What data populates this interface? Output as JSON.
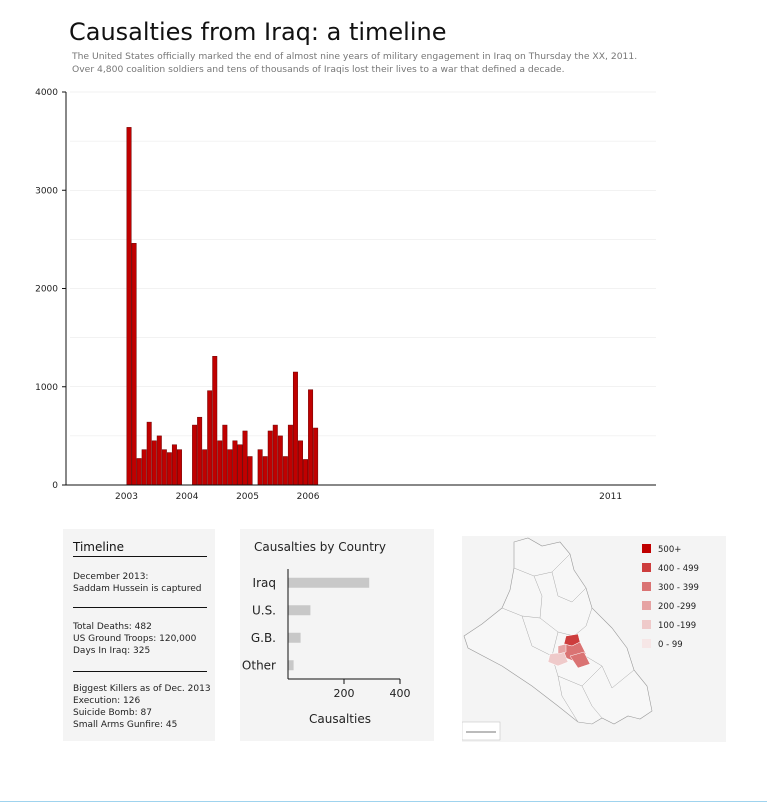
{
  "header": {
    "title": "Causalties from Iraq: a timeline",
    "subtitle": "The United States officially marked the end of almost nine years of military engagement in Iraq on Thursday the XX, 2011. Over 4,800 coalition soldiers and tens of thousands of Iraqis lost their lives to a war that defined a decade."
  },
  "chart_data": [
    {
      "type": "bar",
      "title": "",
      "xlabel": "",
      "ylabel": "",
      "ylim": [
        0,
        4000
      ],
      "yticks": [
        0,
        1000,
        2000,
        3000,
        4000
      ],
      "ytick_labels": [
        "0",
        "1000",
        "2000",
        "3000",
        "4000"
      ],
      "xtick_labels": [
        "2003",
        "2004",
        "2005",
        "2006",
        "2011"
      ],
      "xtick_dates": [
        "2003-01-01",
        "2004-01-01",
        "2005-01-01",
        "2006-01-01",
        "2011-01-01"
      ],
      "xlim": [
        "2002-03-01",
        "2011-12-01"
      ],
      "months": [
        "2003-03",
        "2003-04",
        "2003-05",
        "2003-06",
        "2003-07",
        "2003-08",
        "2003-09",
        "2003-10",
        "2003-11",
        "2003-12",
        "2004-01",
        "2004-02",
        "2004-03",
        "2004-04",
        "2004-05",
        "2004-06",
        "2004-07",
        "2004-08",
        "2004-09",
        "2004-10",
        "2004-11",
        "2004-12",
        "2005-01",
        "2005-02",
        "2005-03",
        "2005-04",
        "2005-05",
        "2005-06",
        "2005-07",
        "2005-08",
        "2005-09",
        "2005-10",
        "2005-11",
        "2005-12",
        "2006-01",
        "2006-02",
        "2006-03",
        "2006-04",
        "2006-05"
      ],
      "values": [
        3640,
        2460,
        270,
        360,
        640,
        450,
        500,
        360,
        330,
        410,
        360,
        0,
        0,
        610,
        690,
        360,
        960,
        1310,
        450,
        610,
        360,
        450,
        410,
        550,
        290,
        0,
        360,
        290,
        550,
        610,
        500,
        290,
        610,
        1150,
        450,
        260,
        970,
        580,
        0
      ],
      "highlight_color": "#c00000",
      "grid": true
    },
    {
      "type": "bar",
      "orientation": "horizontal",
      "title": "Causalties by Country",
      "xlabel": "Causalties",
      "categories": [
        "Iraq",
        "U.S.",
        "G.B.",
        "Other"
      ],
      "values": [
        290,
        80,
        45,
        20
      ],
      "xlim": [
        0,
        400
      ],
      "xticks": [
        200,
        400
      ],
      "xtick_labels": [
        "200",
        "400"
      ],
      "bar_color": "#c8c8c8"
    }
  ],
  "timeline": {
    "heading": "Timeline",
    "event": "December 2013:\nSaddam Hussein is captured",
    "stats": "Total Deaths: 482\nUS Ground Troops: 120,000\nDays In Iraq: 325",
    "killers": "Biggest Killers as of Dec. 2013\nExecution: 126\nSuicide Bomb: 87\nSmall Arms Gunfire: 45"
  },
  "map": {
    "legend": [
      {
        "label": "500+",
        "color": "#c00000"
      },
      {
        "label": "400 - 499",
        "color": "#cd3d3d"
      },
      {
        "label": "300 - 399",
        "color": "#da7373"
      },
      {
        "label": "200 -299",
        "color": "#e6a3a3"
      },
      {
        "label": "100 -199",
        "color": "#efcaca"
      },
      {
        "label": "0 - 99",
        "color": "#f6e6e6"
      }
    ]
  }
}
